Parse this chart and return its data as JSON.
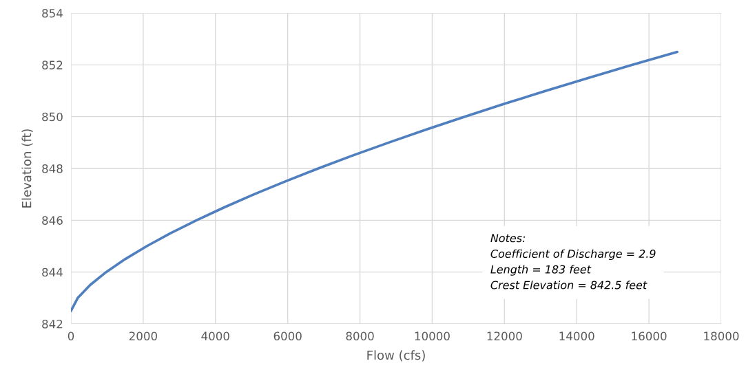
{
  "chart_data": {
    "type": "line",
    "xlabel": "Flow (cfs)",
    "ylabel": "Elevation (ft)",
    "x": [
      0,
      188,
      531,
      975,
      1501,
      2098,
      2757,
      3475,
      4246,
      5066,
      5933,
      6845,
      7800,
      8795,
      9829,
      10900,
      12008,
      13152,
      14329,
      15540,
      16782
    ],
    "series": [
      {
        "color": "#4f7fbe",
        "values": [
          842.5,
          843.0,
          843.5,
          844.0,
          844.5,
          845.0,
          845.5,
          846.0,
          846.5,
          847.0,
          847.5,
          848.0,
          848.5,
          849.0,
          849.5,
          850.0,
          850.5,
          851.0,
          851.5,
          852.0,
          852.5
        ]
      }
    ],
    "xlim": [
      0,
      18000
    ],
    "xticks": [
      0,
      2000,
      4000,
      6000,
      8000,
      10000,
      12000,
      14000,
      16000,
      18000
    ],
    "ylim": [
      842,
      854
    ],
    "yticks": [
      842,
      844,
      846,
      848,
      850,
      852,
      854
    ],
    "grid": true,
    "marker": "none",
    "line_style": "solid",
    "annotations": [
      "Notes:\nCoefficient of Discharge = 2.9\nLength = 183 feet\nCrest Elevation = 842.5 feet"
    ]
  }
}
